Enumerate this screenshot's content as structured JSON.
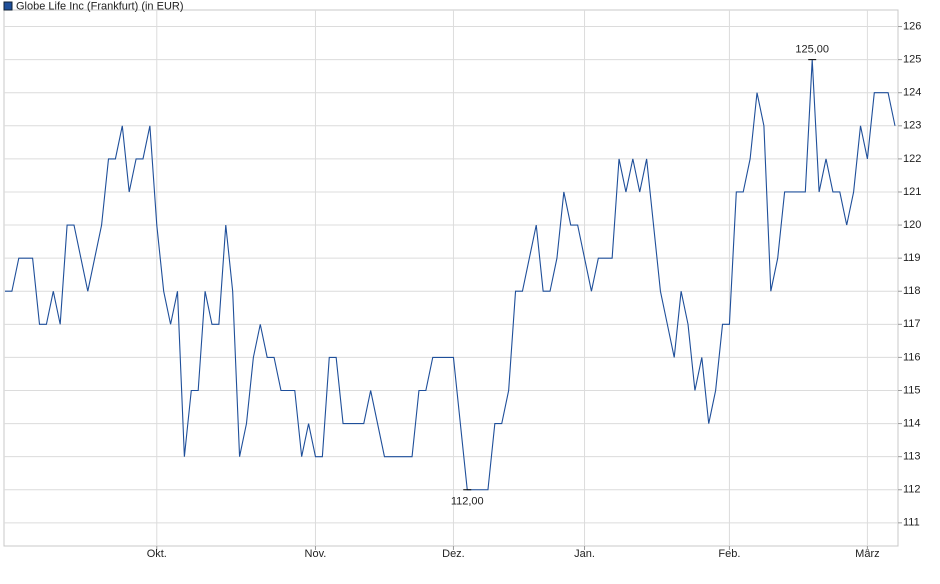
{
  "chart_data": {
    "type": "line",
    "categories": [
      null,
      null,
      null,
      null,
      null,
      null,
      null,
      null,
      null,
      null,
      null,
      null,
      null,
      null,
      null,
      null,
      null,
      null,
      null,
      null,
      null,
      null,
      "Okt.",
      null,
      null,
      null,
      null,
      null,
      null,
      null,
      null,
      null,
      null,
      null,
      null,
      null,
      null,
      null,
      null,
      null,
      null,
      null,
      null,
      null,
      null,
      "Nov.",
      null,
      null,
      null,
      null,
      null,
      null,
      null,
      null,
      null,
      null,
      null,
      null,
      null,
      null,
      null,
      null,
      null,
      null,
      null,
      "Dez.",
      null,
      null,
      null,
      null,
      null,
      null,
      null,
      null,
      null,
      null,
      null,
      null,
      null,
      null,
      null,
      null,
      null,
      null,
      "Jan.",
      null,
      null,
      null,
      null,
      null,
      null,
      null,
      null,
      null,
      null,
      null,
      null,
      null,
      null,
      null,
      null,
      null,
      null,
      null,
      null,
      "Feb.",
      null,
      null,
      null,
      null,
      null,
      null,
      null,
      null,
      null,
      null,
      null,
      null,
      null,
      null,
      null,
      null,
      null,
      null,
      null,
      "März",
      null,
      null,
      null,
      null
    ],
    "series": [
      {
        "name": "Globe Life Inc (Frankfurt) (in EUR)",
        "color": "#1f4f9a",
        "values": [
          118,
          118,
          119,
          119,
          119,
          117,
          117,
          118,
          117,
          120,
          120,
          119,
          118,
          119,
          120,
          122,
          122,
          123,
          121,
          122,
          122,
          123,
          120,
          118,
          117,
          118,
          113,
          115,
          115,
          118,
          117,
          117,
          120,
          118,
          113,
          114,
          116,
          117,
          116,
          116,
          115,
          115,
          115,
          113,
          114,
          113,
          113,
          116,
          116,
          114,
          114,
          114,
          114,
          115,
          114,
          113,
          113,
          113,
          113,
          113,
          115,
          115,
          116,
          116,
          116,
          116,
          114,
          112,
          112,
          112,
          112,
          114,
          114,
          115,
          118,
          118,
          119,
          120,
          118,
          118,
          119,
          121,
          120,
          120,
          119,
          118,
          119,
          119,
          119,
          122,
          121,
          122,
          121,
          122,
          120,
          118,
          117,
          116,
          118,
          117,
          115,
          116,
          114,
          115,
          117,
          117,
          121,
          121,
          122,
          124,
          123,
          118,
          119,
          121,
          121,
          121,
          121,
          125,
          121,
          122,
          121,
          121,
          120,
          121,
          123,
          122,
          124,
          124,
          124,
          123
        ]
      }
    ],
    "max_label": "125,00",
    "min_label": "112,00",
    "ylim": [
      110.3,
      126.5
    ],
    "yticks": [
      111,
      112,
      113,
      114,
      115,
      116,
      117,
      118,
      119,
      120,
      121,
      122,
      123,
      124,
      125,
      126
    ],
    "grid": true
  }
}
